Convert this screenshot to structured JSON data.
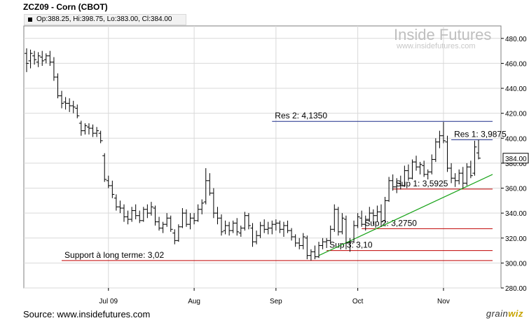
{
  "header": {
    "title": "ZCZ09 - Corn (CBOT)",
    "ohlc": "Op:388.25, Hi:398.75, Lo:383.00, Cl:384.00"
  },
  "footer": {
    "source": "Source: www.insidefutures.com",
    "brand_a": "grain",
    "brand_b": "wiz"
  },
  "watermark": {
    "name": "Inside Futures",
    "url": "www.insidefutures.com"
  },
  "colors": {
    "bars": "#000000",
    "support": "#c00000",
    "resistance": "#1f2f8c",
    "trend": "#19a319",
    "grid": "#d9d9d9"
  },
  "chart_data": {
    "type": "ohlc",
    "ylim": [
      280,
      490
    ],
    "yticks": [
      280,
      300,
      320,
      340,
      360,
      380,
      400,
      420,
      440,
      460,
      480
    ],
    "ytick_labels": [
      "280.00",
      "300.00",
      "320.00",
      "340.00",
      "360.00",
      "380.00",
      "400.00",
      "420.00",
      "440.00",
      "460.00",
      "480.00"
    ],
    "xticks": [
      {
        "label": "Jul 09",
        "date": "2009-07-01"
      },
      {
        "label": "Aug",
        "date": "2009-08-03"
      },
      {
        "label": "Sep",
        "date": "2009-09-01"
      },
      {
        "label": "Oct",
        "date": "2009-10-01"
      },
      {
        "label": "Nov",
        "date": "2009-11-02"
      }
    ],
    "last_price_label": "384.00",
    "last_price": 384,
    "series": [
      {
        "points": [
          {
            "d": "2009-06-02",
            "o": 468,
            "h": 472,
            "l": 453,
            "c": 460
          },
          {
            "d": "2009-06-03",
            "o": 462,
            "h": 471,
            "l": 456,
            "c": 468
          },
          {
            "d": "2009-06-04",
            "o": 466,
            "h": 470,
            "l": 459,
            "c": 463
          },
          {
            "d": "2009-06-05",
            "o": 461,
            "h": 469,
            "l": 457,
            "c": 466
          },
          {
            "d": "2009-06-08",
            "o": 465,
            "h": 470,
            "l": 458,
            "c": 462
          },
          {
            "d": "2009-06-09",
            "o": 463,
            "h": 468,
            "l": 460,
            "c": 466
          },
          {
            "d": "2009-06-10",
            "o": 466,
            "h": 470,
            "l": 458,
            "c": 461
          },
          {
            "d": "2009-06-11",
            "o": 461,
            "h": 465,
            "l": 446,
            "c": 449
          },
          {
            "d": "2009-06-12",
            "o": 449,
            "h": 452,
            "l": 432,
            "c": 434
          },
          {
            "d": "2009-06-15",
            "o": 434,
            "h": 438,
            "l": 424,
            "c": 428
          },
          {
            "d": "2009-06-16",
            "o": 429,
            "h": 433,
            "l": 423,
            "c": 428
          },
          {
            "d": "2009-06-17",
            "o": 428,
            "h": 432,
            "l": 421,
            "c": 426
          },
          {
            "d": "2009-06-18",
            "o": 426,
            "h": 430,
            "l": 420,
            "c": 425
          },
          {
            "d": "2009-06-19",
            "o": 424,
            "h": 427,
            "l": 416,
            "c": 418
          },
          {
            "d": "2009-06-22",
            "o": 412,
            "h": 414,
            "l": 402,
            "c": 406
          },
          {
            "d": "2009-06-23",
            "o": 406,
            "h": 412,
            "l": 403,
            "c": 410
          },
          {
            "d": "2009-06-24",
            "o": 409,
            "h": 412,
            "l": 403,
            "c": 408
          },
          {
            "d": "2009-06-25",
            "o": 408,
            "h": 411,
            "l": 401,
            "c": 404
          },
          {
            "d": "2009-06-26",
            "o": 404,
            "h": 409,
            "l": 401,
            "c": 406
          },
          {
            "d": "2009-06-29",
            "o": 404,
            "h": 406,
            "l": 396,
            "c": 398
          },
          {
            "d": "2009-06-30",
            "o": 386,
            "h": 388,
            "l": 365,
            "c": 367
          },
          {
            "d": "2009-07-01",
            "o": 366,
            "h": 370,
            "l": 360,
            "c": 362
          },
          {
            "d": "2009-07-02",
            "o": 362,
            "h": 366,
            "l": 352,
            "c": 355
          },
          {
            "d": "2009-07-06",
            "o": 352,
            "h": 355,
            "l": 342,
            "c": 345
          },
          {
            "d": "2009-07-07",
            "o": 345,
            "h": 350,
            "l": 340,
            "c": 344
          },
          {
            "d": "2009-07-08",
            "o": 344,
            "h": 347,
            "l": 333,
            "c": 337
          },
          {
            "d": "2009-07-09",
            "o": 337,
            "h": 342,
            "l": 331,
            "c": 335
          },
          {
            "d": "2009-07-10",
            "o": 335,
            "h": 345,
            "l": 333,
            "c": 342
          },
          {
            "d": "2009-07-13",
            "o": 342,
            "h": 347,
            "l": 335,
            "c": 338
          },
          {
            "d": "2009-07-14",
            "o": 338,
            "h": 342,
            "l": 332,
            "c": 334
          },
          {
            "d": "2009-07-15",
            "o": 334,
            "h": 345,
            "l": 333,
            "c": 343
          },
          {
            "d": "2009-07-16",
            "o": 343,
            "h": 347,
            "l": 336,
            "c": 340
          },
          {
            "d": "2009-07-17",
            "o": 340,
            "h": 349,
            "l": 338,
            "c": 345
          },
          {
            "d": "2009-07-20",
            "o": 344,
            "h": 346,
            "l": 330,
            "c": 333
          },
          {
            "d": "2009-07-21",
            "o": 333,
            "h": 337,
            "l": 326,
            "c": 328
          },
          {
            "d": "2009-07-22",
            "o": 328,
            "h": 333,
            "l": 324,
            "c": 331
          },
          {
            "d": "2009-07-23",
            "o": 331,
            "h": 340,
            "l": 329,
            "c": 336
          },
          {
            "d": "2009-07-24",
            "o": 336,
            "h": 338,
            "l": 325,
            "c": 327
          },
          {
            "d": "2009-07-27",
            "o": 324,
            "h": 327,
            "l": 315,
            "c": 318
          },
          {
            "d": "2009-07-28",
            "o": 318,
            "h": 331,
            "l": 317,
            "c": 329
          },
          {
            "d": "2009-07-29",
            "o": 329,
            "h": 344,
            "l": 328,
            "c": 340
          },
          {
            "d": "2009-07-30",
            "o": 340,
            "h": 343,
            "l": 329,
            "c": 331
          },
          {
            "d": "2009-07-31",
            "o": 331,
            "h": 340,
            "l": 327,
            "c": 336
          },
          {
            "d": "2009-08-03",
            "o": 336,
            "h": 340,
            "l": 331,
            "c": 334
          },
          {
            "d": "2009-08-04",
            "o": 334,
            "h": 347,
            "l": 333,
            "c": 343
          },
          {
            "d": "2009-08-05",
            "o": 343,
            "h": 351,
            "l": 339,
            "c": 348
          },
          {
            "d": "2009-08-06",
            "o": 349,
            "h": 376,
            "l": 347,
            "c": 366
          },
          {
            "d": "2009-08-07",
            "o": 366,
            "h": 372,
            "l": 354,
            "c": 356
          },
          {
            "d": "2009-08-10",
            "o": 356,
            "h": 360,
            "l": 336,
            "c": 340
          },
          {
            "d": "2009-08-11",
            "o": 340,
            "h": 345,
            "l": 331,
            "c": 336
          },
          {
            "d": "2009-08-12",
            "o": 336,
            "h": 339,
            "l": 322,
            "c": 325
          },
          {
            "d": "2009-08-13",
            "o": 326,
            "h": 334,
            "l": 323,
            "c": 330
          },
          {
            "d": "2009-08-14",
            "o": 330,
            "h": 333,
            "l": 322,
            "c": 326
          },
          {
            "d": "2009-08-17",
            "o": 326,
            "h": 334,
            "l": 324,
            "c": 332
          },
          {
            "d": "2009-08-18",
            "o": 332,
            "h": 336,
            "l": 322,
            "c": 325
          },
          {
            "d": "2009-08-19",
            "o": 324,
            "h": 330,
            "l": 321,
            "c": 328
          },
          {
            "d": "2009-08-20",
            "o": 328,
            "h": 341,
            "l": 326,
            "c": 338
          },
          {
            "d": "2009-08-21",
            "o": 338,
            "h": 340,
            "l": 327,
            "c": 330
          },
          {
            "d": "2009-08-24",
            "o": 328,
            "h": 332,
            "l": 313,
            "c": 317
          },
          {
            "d": "2009-08-25",
            "o": 317,
            "h": 326,
            "l": 315,
            "c": 322
          },
          {
            "d": "2009-08-26",
            "o": 322,
            "h": 333,
            "l": 320,
            "c": 330
          },
          {
            "d": "2009-08-27",
            "o": 330,
            "h": 335,
            "l": 324,
            "c": 327
          },
          {
            "d": "2009-08-28",
            "o": 327,
            "h": 333,
            "l": 323,
            "c": 328
          },
          {
            "d": "2009-08-31",
            "o": 328,
            "h": 334,
            "l": 323,
            "c": 331
          },
          {
            "d": "2009-09-01",
            "o": 331,
            "h": 335,
            "l": 326,
            "c": 332
          },
          {
            "d": "2009-09-02",
            "o": 332,
            "h": 334,
            "l": 324,
            "c": 327
          },
          {
            "d": "2009-09-03",
            "o": 327,
            "h": 333,
            "l": 321,
            "c": 330
          },
          {
            "d": "2009-09-04",
            "o": 330,
            "h": 334,
            "l": 324,
            "c": 326
          },
          {
            "d": "2009-09-08",
            "o": 326,
            "h": 328,
            "l": 318,
            "c": 321
          },
          {
            "d": "2009-09-09",
            "o": 321,
            "h": 323,
            "l": 313,
            "c": 316
          },
          {
            "d": "2009-09-10",
            "o": 316,
            "h": 320,
            "l": 311,
            "c": 314
          },
          {
            "d": "2009-09-11",
            "o": 314,
            "h": 324,
            "l": 311,
            "c": 321
          },
          {
            "d": "2009-09-14",
            "o": 320,
            "h": 322,
            "l": 303,
            "c": 306
          },
          {
            "d": "2009-09-15",
            "o": 306,
            "h": 311,
            "l": 302,
            "c": 309
          },
          {
            "d": "2009-09-16",
            "o": 309,
            "h": 314,
            "l": 303,
            "c": 305
          },
          {
            "d": "2009-09-17",
            "o": 305,
            "h": 317,
            "l": 304,
            "c": 314
          },
          {
            "d": "2009-09-18",
            "o": 314,
            "h": 320,
            "l": 311,
            "c": 317
          },
          {
            "d": "2009-09-21",
            "o": 317,
            "h": 320,
            "l": 312,
            "c": 318
          },
          {
            "d": "2009-09-22",
            "o": 318,
            "h": 330,
            "l": 316,
            "c": 327
          },
          {
            "d": "2009-09-23",
            "o": 327,
            "h": 347,
            "l": 325,
            "c": 343
          },
          {
            "d": "2009-09-24",
            "o": 343,
            "h": 345,
            "l": 322,
            "c": 325
          },
          {
            "d": "2009-09-25",
            "o": 325,
            "h": 340,
            "l": 323,
            "c": 336
          },
          {
            "d": "2009-09-28",
            "o": 335,
            "h": 338,
            "l": 311,
            "c": 316
          },
          {
            "d": "2009-09-29",
            "o": 316,
            "h": 320,
            "l": 309,
            "c": 317
          },
          {
            "d": "2009-09-30",
            "o": 317,
            "h": 334,
            "l": 316,
            "c": 330
          },
          {
            "d": "2009-10-01",
            "o": 330,
            "h": 340,
            "l": 328,
            "c": 337
          },
          {
            "d": "2009-10-02",
            "o": 336,
            "h": 342,
            "l": 329,
            "c": 331
          },
          {
            "d": "2009-10-05",
            "o": 331,
            "h": 338,
            "l": 326,
            "c": 335
          },
          {
            "d": "2009-10-06",
            "o": 335,
            "h": 345,
            "l": 333,
            "c": 340
          },
          {
            "d": "2009-10-07",
            "o": 340,
            "h": 343,
            "l": 331,
            "c": 338
          },
          {
            "d": "2009-10-08",
            "o": 338,
            "h": 346,
            "l": 333,
            "c": 341
          },
          {
            "d": "2009-10-09",
            "o": 341,
            "h": 347,
            "l": 329,
            "c": 333
          },
          {
            "d": "2009-10-12",
            "o": 334,
            "h": 353,
            "l": 332,
            "c": 350
          },
          {
            "d": "2009-10-13",
            "o": 350,
            "h": 369,
            "l": 349,
            "c": 366
          },
          {
            "d": "2009-10-14",
            "o": 366,
            "h": 371,
            "l": 358,
            "c": 361
          },
          {
            "d": "2009-10-15",
            "o": 361,
            "h": 368,
            "l": 356,
            "c": 364
          },
          {
            "d": "2009-10-16",
            "o": 364,
            "h": 370,
            "l": 359,
            "c": 362
          },
          {
            "d": "2009-10-19",
            "o": 362,
            "h": 378,
            "l": 361,
            "c": 374
          },
          {
            "d": "2009-10-20",
            "o": 374,
            "h": 379,
            "l": 366,
            "c": 368
          },
          {
            "d": "2009-10-21",
            "o": 368,
            "h": 383,
            "l": 367,
            "c": 381
          },
          {
            "d": "2009-10-22",
            "o": 381,
            "h": 386,
            "l": 374,
            "c": 377
          },
          {
            "d": "2009-10-23",
            "o": 377,
            "h": 381,
            "l": 371,
            "c": 379
          },
          {
            "d": "2009-10-26",
            "o": 378,
            "h": 382,
            "l": 369,
            "c": 371
          },
          {
            "d": "2009-10-27",
            "o": 371,
            "h": 375,
            "l": 367,
            "c": 373
          },
          {
            "d": "2009-10-28",
            "o": 373,
            "h": 387,
            "l": 371,
            "c": 383
          },
          {
            "d": "2009-10-29",
            "o": 383,
            "h": 400,
            "l": 381,
            "c": 397
          },
          {
            "d": "2009-10-30",
            "o": 397,
            "h": 406,
            "l": 392,
            "c": 402
          },
          {
            "d": "2009-11-02",
            "o": 402,
            "h": 413,
            "l": 396,
            "c": 398
          },
          {
            "d": "2009-11-03",
            "o": 397,
            "h": 402,
            "l": 373,
            "c": 376
          },
          {
            "d": "2009-11-04",
            "o": 376,
            "h": 380,
            "l": 364,
            "c": 368
          },
          {
            "d": "2009-11-05",
            "o": 368,
            "h": 372,
            "l": 361,
            "c": 366
          },
          {
            "d": "2009-11-06",
            "o": 366,
            "h": 375,
            "l": 363,
            "c": 372
          },
          {
            "d": "2009-11-09",
            "o": 372,
            "h": 377,
            "l": 360,
            "c": 364
          },
          {
            "d": "2009-11-10",
            "o": 364,
            "h": 380,
            "l": 362,
            "c": 377
          },
          {
            "d": "2009-11-11",
            "o": 377,
            "h": 382,
            "l": 368,
            "c": 370
          },
          {
            "d": "2009-11-12",
            "o": 372,
            "h": 398,
            "l": 370,
            "c": 393
          },
          {
            "d": "2009-11-13",
            "o": 388.25,
            "h": 398.75,
            "l": 383,
            "c": 384
          }
        ]
      }
    ],
    "annotations": [
      {
        "label": "Res 2: 4,1350",
        "price": 413.5,
        "from": "2009-08-31",
        "to": "2009-11-18",
        "kind": "resistance"
      },
      {
        "label": "Res 1: 3,9875",
        "price": 398.75,
        "from": "2009-11-04",
        "to": "2009-11-18",
        "kind": "resistance"
      },
      {
        "label": "Sup 1: 3,5925",
        "price": 359.25,
        "from": "2009-10-14",
        "to": "2009-11-18",
        "kind": "support"
      },
      {
        "label": "Sup 2: 3,2750",
        "price": 327.5,
        "from": "2009-10-02",
        "to": "2009-11-18",
        "kind": "support"
      },
      {
        "label": "Sup 3: 3,10",
        "price": 310,
        "from": "2009-09-21",
        "to": "2009-11-18",
        "kind": "support"
      },
      {
        "label": "Support à long terme: 3,02",
        "price": 302,
        "from": "2009-06-15",
        "to": "2009-11-18",
        "kind": "support"
      }
    ],
    "trendline": {
      "from": {
        "d": "2009-09-17",
        "price": 306
      },
      "to": {
        "d": "2009-11-18",
        "price": 371
      }
    }
  }
}
